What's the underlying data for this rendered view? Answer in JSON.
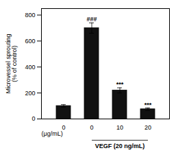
{
  "chart_data": {
    "type": "bar",
    "categories": [
      "0",
      "0",
      "10",
      "20"
    ],
    "values": [
      100,
      700,
      220,
      75
    ],
    "errors": [
      10,
      40,
      20,
      10
    ],
    "color": "#111111",
    "ylabel": "Microvessel sprouting\n(% of control)",
    "xlabel": "(μg/mL)",
    "group": {
      "label": "VEGF (20 ng/mL)",
      "from": 1,
      "to": 3
    },
    "annotations": [
      {
        "x": 1,
        "y": 750,
        "text": "###"
      },
      {
        "x": 2,
        "y": 250,
        "text": "***"
      },
      {
        "x": 3,
        "y": 95,
        "text": "***"
      }
    ],
    "ylim": [
      0,
      850
    ],
    "yticks": [
      0,
      200,
      400,
      600,
      800
    ],
    "grid": false
  }
}
